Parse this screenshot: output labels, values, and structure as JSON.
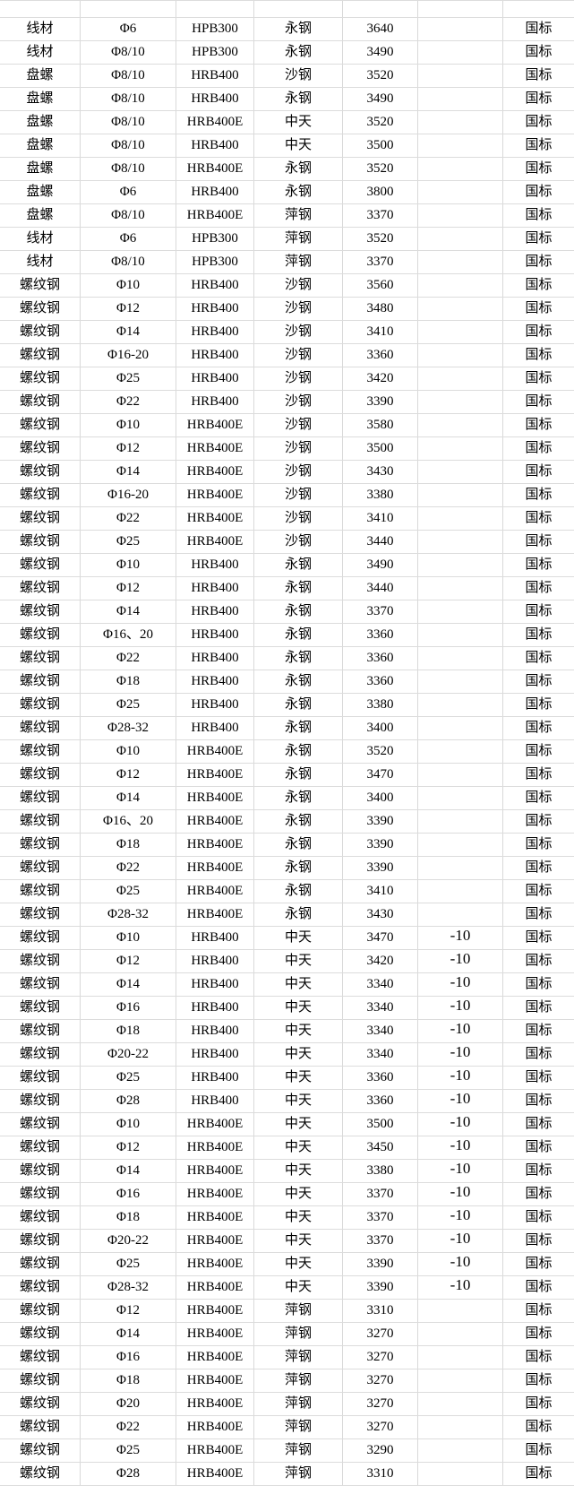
{
  "table": {
    "column_keys": [
      "category",
      "spec",
      "grade",
      "mill",
      "price",
      "change",
      "standard"
    ],
    "rows": [
      [
        "线材",
        "Φ6",
        "HPB300",
        "永钢",
        "3640",
        "",
        "国标"
      ],
      [
        "线材",
        "Φ8/10",
        "HPB300",
        "永钢",
        "3490",
        "",
        "国标"
      ],
      [
        "盘螺",
        "Φ8/10",
        "HRB400",
        "沙钢",
        "3520",
        "",
        "国标"
      ],
      [
        "盘螺",
        "Φ8/10",
        "HRB400",
        "永钢",
        "3490",
        "",
        "国标"
      ],
      [
        "盘螺",
        "Φ8/10",
        "HRB400E",
        "中天",
        "3520",
        "",
        "国标"
      ],
      [
        "盘螺",
        "Φ8/10",
        "HRB400",
        "中天",
        "3500",
        "",
        "国标"
      ],
      [
        "盘螺",
        "Φ8/10",
        "HRB400E",
        "永钢",
        "3520",
        "",
        "国标"
      ],
      [
        "盘螺",
        "Φ6",
        "HRB400",
        "永钢",
        "3800",
        "",
        "国标"
      ],
      [
        "盘螺",
        "Φ8/10",
        "HRB400E",
        "萍钢",
        "3370",
        "",
        "国标"
      ],
      [
        "线材",
        "Φ6",
        "HPB300",
        "萍钢",
        "3520",
        "",
        "国标"
      ],
      [
        "线材",
        "Φ8/10",
        "HPB300",
        "萍钢",
        "3370",
        "",
        "国标"
      ],
      [
        "螺纹钢",
        "Φ10",
        "HRB400",
        "沙钢",
        "3560",
        "",
        "国标"
      ],
      [
        "螺纹钢",
        "Φ12",
        "HRB400",
        "沙钢",
        "3480",
        "",
        "国标"
      ],
      [
        "螺纹钢",
        "Φ14",
        "HRB400",
        "沙钢",
        "3410",
        "",
        "国标"
      ],
      [
        "螺纹钢",
        "Φ16-20",
        "HRB400",
        "沙钢",
        "3360",
        "",
        "国标"
      ],
      [
        "螺纹钢",
        "Φ25",
        "HRB400",
        "沙钢",
        "3420",
        "",
        "国标"
      ],
      [
        "螺纹钢",
        "Φ22",
        "HRB400",
        "沙钢",
        "3390",
        "",
        "国标"
      ],
      [
        "螺纹钢",
        "Φ10",
        "HRB400E",
        "沙钢",
        "3580",
        "",
        "国标"
      ],
      [
        "螺纹钢",
        "Φ12",
        "HRB400E",
        "沙钢",
        "3500",
        "",
        "国标"
      ],
      [
        "螺纹钢",
        "Φ14",
        "HRB400E",
        "沙钢",
        "3430",
        "",
        "国标"
      ],
      [
        "螺纹钢",
        "Φ16-20",
        "HRB400E",
        "沙钢",
        "3380",
        "",
        "国标"
      ],
      [
        "螺纹钢",
        "Φ22",
        "HRB400E",
        "沙钢",
        "3410",
        "",
        "国标"
      ],
      [
        "螺纹钢",
        "Φ25",
        "HRB400E",
        "沙钢",
        "3440",
        "",
        "国标"
      ],
      [
        "螺纹钢",
        "Φ10",
        "HRB400",
        "永钢",
        "3490",
        "",
        "国标"
      ],
      [
        "螺纹钢",
        "Φ12",
        "HRB400",
        "永钢",
        "3440",
        "",
        "国标"
      ],
      [
        "螺纹钢",
        "Φ14",
        "HRB400",
        "永钢",
        "3370",
        "",
        "国标"
      ],
      [
        "螺纹钢",
        "Φ16、20",
        "HRB400",
        "永钢",
        "3360",
        "",
        "国标"
      ],
      [
        "螺纹钢",
        "Φ22",
        "HRB400",
        "永钢",
        "3360",
        "",
        "国标"
      ],
      [
        "螺纹钢",
        "Φ18",
        "HRB400",
        "永钢",
        "3360",
        "",
        "国标"
      ],
      [
        "螺纹钢",
        "Φ25",
        "HRB400",
        "永钢",
        "3380",
        "",
        "国标"
      ],
      [
        "螺纹钢",
        "Φ28-32",
        "HRB400",
        "永钢",
        "3400",
        "",
        "国标"
      ],
      [
        "螺纹钢",
        "Φ10",
        "HRB400E",
        "永钢",
        "3520",
        "",
        "国标"
      ],
      [
        "螺纹钢",
        "Φ12",
        "HRB400E",
        "永钢",
        "3470",
        "",
        "国标"
      ],
      [
        "螺纹钢",
        "Φ14",
        "HRB400E",
        "永钢",
        "3400",
        "",
        "国标"
      ],
      [
        "螺纹钢",
        "Φ16、20",
        "HRB400E",
        "永钢",
        "3390",
        "",
        "国标"
      ],
      [
        "螺纹钢",
        "Φ18",
        "HRB400E",
        "永钢",
        "3390",
        "",
        "国标"
      ],
      [
        "螺纹钢",
        "Φ22",
        "HRB400E",
        "永钢",
        "3390",
        "",
        "国标"
      ],
      [
        "螺纹钢",
        "Φ25",
        "HRB400E",
        "永钢",
        "3410",
        "",
        "国标"
      ],
      [
        "螺纹钢",
        "Φ28-32",
        "HRB400E",
        "永钢",
        "3430",
        "",
        "国标"
      ],
      [
        "螺纹钢",
        "Φ10",
        "HRB400",
        "中天",
        "3470",
        "-10",
        "国标"
      ],
      [
        "螺纹钢",
        "Φ12",
        "HRB400",
        "中天",
        "3420",
        "-10",
        "国标"
      ],
      [
        "螺纹钢",
        "Φ14",
        "HRB400",
        "中天",
        "3340",
        "-10",
        "国标"
      ],
      [
        "螺纹钢",
        "Φ16",
        "HRB400",
        "中天",
        "3340",
        "-10",
        "国标"
      ],
      [
        "螺纹钢",
        "Φ18",
        "HRB400",
        "中天",
        "3340",
        "-10",
        "国标"
      ],
      [
        "螺纹钢",
        "Φ20-22",
        "HRB400",
        "中天",
        "3340",
        "-10",
        "国标"
      ],
      [
        "螺纹钢",
        "Φ25",
        "HRB400",
        "中天",
        "3360",
        "-10",
        "国标"
      ],
      [
        "螺纹钢",
        "Φ28",
        "HRB400",
        "中天",
        "3360",
        "-10",
        "国标"
      ],
      [
        "螺纹钢",
        "Φ10",
        "HRB400E",
        "中天",
        "3500",
        "-10",
        "国标"
      ],
      [
        "螺纹钢",
        "Φ12",
        "HRB400E",
        "中天",
        "3450",
        "-10",
        "国标"
      ],
      [
        "螺纹钢",
        "Φ14",
        "HRB400E",
        "中天",
        "3380",
        "-10",
        "国标"
      ],
      [
        "螺纹钢",
        "Φ16",
        "HRB400E",
        "中天",
        "3370",
        "-10",
        "国标"
      ],
      [
        "螺纹钢",
        "Φ18",
        "HRB400E",
        "中天",
        "3370",
        "-10",
        "国标"
      ],
      [
        "螺纹钢",
        "Φ20-22",
        "HRB400E",
        "中天",
        "3370",
        "-10",
        "国标"
      ],
      [
        "螺纹钢",
        "Φ25",
        "HRB400E",
        "中天",
        "3390",
        "-10",
        "国标"
      ],
      [
        "螺纹钢",
        "Φ28-32",
        "HRB400E",
        "中天",
        "3390",
        "-10",
        "国标"
      ],
      [
        "螺纹钢",
        "Φ12",
        "HRB400E",
        "萍钢",
        "3310",
        "",
        "国标"
      ],
      [
        "螺纹钢",
        "Φ14",
        "HRB400E",
        "萍钢",
        "3270",
        "",
        "国标"
      ],
      [
        "螺纹钢",
        "Φ16",
        "HRB400E",
        "萍钢",
        "3270",
        "",
        "国标"
      ],
      [
        "螺纹钢",
        "Φ18",
        "HRB400E",
        "萍钢",
        "3270",
        "",
        "国标"
      ],
      [
        "螺纹钢",
        "Φ20",
        "HRB400E",
        "萍钢",
        "3270",
        "",
        "国标"
      ],
      [
        "螺纹钢",
        "Φ22",
        "HRB400E",
        "萍钢",
        "3270",
        "",
        "国标"
      ],
      [
        "螺纹钢",
        "Φ25",
        "HRB400E",
        "萍钢",
        "3290",
        "",
        "国标"
      ],
      [
        "螺纹钢",
        "Φ28",
        "HRB400E",
        "萍钢",
        "3310",
        "",
        "国标"
      ]
    ],
    "gridline_color": "#d9d9d9",
    "text_color": "#000000",
    "background_color": "#ffffff"
  }
}
